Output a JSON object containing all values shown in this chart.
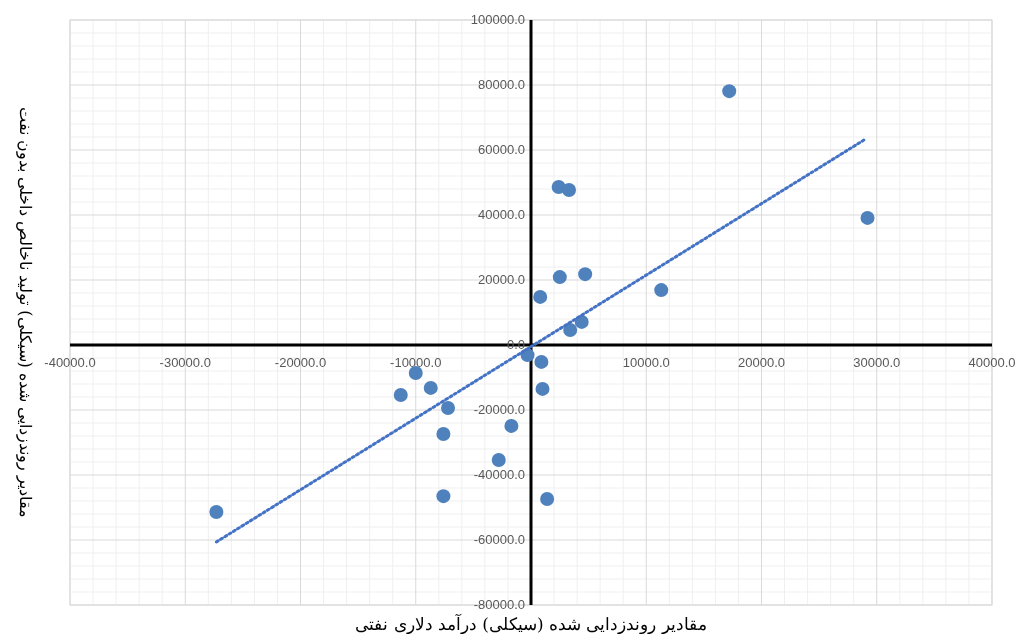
{
  "chart_data": {
    "type": "scatter",
    "xlabel": "مقادیر روندزدایی شده (سیکلی) درآمد دلاری نفتی",
    "ylabel": "مقادیر روندزدایی شده (سیکلی) تولید ناخالص داخلی بدون نفت",
    "xlim": [
      -40000,
      40000
    ],
    "ylim": [
      -80000,
      100000
    ],
    "xticks": [
      {
        "value": -40000,
        "label": "-40000.0"
      },
      {
        "value": -30000,
        "label": "-30000.0"
      },
      {
        "value": -20000,
        "label": "-20000.0"
      },
      {
        "value": -10000,
        "label": "-10000.0"
      },
      {
        "value": 0,
        "label": null
      },
      {
        "value": 10000,
        "label": "10000.0"
      },
      {
        "value": 20000,
        "label": "20000.0"
      },
      {
        "value": 30000,
        "label": "30000.0"
      },
      {
        "value": 40000,
        "label": "40000.0"
      }
    ],
    "yticks": [
      {
        "value": -80000,
        "label": "-80000.0"
      },
      {
        "value": -60000,
        "label": "-60000.0"
      },
      {
        "value": -40000,
        "label": "-40000.0"
      },
      {
        "value": -20000,
        "label": "-20000.0"
      },
      {
        "value": 0,
        "label": "0.0"
      },
      {
        "value": 20000,
        "label": "20000.0"
      },
      {
        "value": 40000,
        "label": "40000.0"
      },
      {
        "value": 60000,
        "label": "60000.0"
      },
      {
        "value": 80000,
        "label": "80000.0"
      },
      {
        "value": 100000,
        "label": "100000.0"
      }
    ],
    "grid": true,
    "series": [
      {
        "color": "#4f81bd",
        "marker": "circle",
        "x": [
          -27300,
          29200,
          17200,
          2400,
          3300,
          2500,
          4700,
          800,
          11300,
          3400,
          4400,
          -300,
          900,
          1000,
          -1700,
          -2800,
          1400,
          -7600,
          -7600,
          -7200,
          -8700,
          -10000,
          -11300
        ],
        "values": [
          -51400,
          39100,
          78100,
          48600,
          47700,
          20900,
          21800,
          14800,
          16900,
          4600,
          7100,
          -3100,
          -5200,
          -13500,
          -24900,
          -35400,
          -47400,
          -46500,
          -27400,
          -19400,
          -13200,
          -8600,
          -15400
        ]
      },
      {
        "type": "line",
        "color": "#4472c4",
        "marker": "none",
        "line_style": "dotted",
        "x": [
          -27300,
          28900
        ],
        "values": [
          -60600,
          63100
        ]
      }
    ]
  }
}
